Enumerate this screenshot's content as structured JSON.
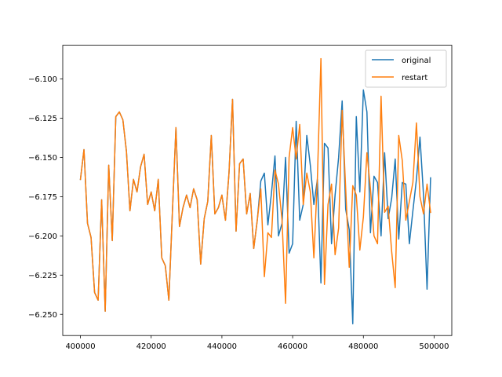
{
  "chart_data": {
    "type": "line",
    "title": "",
    "xlabel": "",
    "ylabel": "",
    "xlim": [
      395000,
      505000
    ],
    "ylim": [
      -6.2635,
      -6.0785
    ],
    "xticks": [
      400000,
      420000,
      440000,
      460000,
      480000,
      500000
    ],
    "xtick_labels": [
      "400000",
      "420000",
      "440000",
      "460000",
      "480000",
      "500000"
    ],
    "yticks": [
      -6.25,
      -6.225,
      -6.2,
      -6.175,
      -6.15,
      -6.125,
      -6.1
    ],
    "ytick_labels": [
      "−6.250",
      "−6.225",
      "−6.200",
      "−6.175",
      "−6.150",
      "−6.125",
      "−6.100"
    ],
    "grid": false,
    "legend_position": "upper right",
    "series": [
      {
        "name": "original",
        "color": "#1f77b4",
        "x": [
          400000,
          401000,
          402000,
          403000,
          404000,
          405000,
          406000,
          407000,
          408000,
          409000,
          410000,
          411000,
          412000,
          413000,
          414000,
          415000,
          416000,
          417000,
          418000,
          419000,
          420000,
          421000,
          422000,
          423000,
          424000,
          425000,
          426000,
          427000,
          428000,
          429000,
          430000,
          431000,
          432000,
          433000,
          434000,
          435000,
          436000,
          437000,
          438000,
          439000,
          440000,
          441000,
          442000,
          443000,
          444000,
          445000,
          446000,
          447000,
          448000,
          449000,
          450000,
          451000,
          452000,
          453000,
          454000,
          455000,
          456000,
          457000,
          458000,
          459000,
          460000,
          461000,
          462000,
          463000,
          464000,
          465000,
          466000,
          467000,
          468000,
          469000,
          470000,
          471000,
          472000,
          473000,
          474000,
          475000,
          476000,
          477000,
          478000,
          479000,
          480000,
          481000,
          482000,
          483000,
          484000,
          485000,
          486000,
          487000,
          488000,
          489000,
          490000,
          491000,
          492000,
          493000,
          494000,
          495000,
          496000,
          497000,
          498000,
          499000
        ],
        "y": [
          -6.164,
          -6.145,
          -6.192,
          -6.201,
          -6.236,
          -6.241,
          -6.177,
          -6.248,
          -6.155,
          -6.203,
          -6.124,
          -6.121,
          -6.126,
          -6.146,
          -6.184,
          -6.164,
          -6.172,
          -6.156,
          -6.148,
          -6.18,
          -6.172,
          -6.184,
          -6.164,
          -6.214,
          -6.219,
          -6.241,
          -6.185,
          -6.131,
          -6.194,
          -6.182,
          -6.174,
          -6.182,
          -6.17,
          -6.177,
          -6.218,
          -6.189,
          -6.178,
          -6.136,
          -6.186,
          -6.182,
          -6.174,
          -6.19,
          -6.16,
          -6.113,
          -6.197,
          -6.154,
          -6.151,
          -6.186,
          -6.173,
          -6.208,
          -6.19,
          -6.165,
          -6.16,
          -6.193,
          -6.173,
          -6.149,
          -6.2,
          -6.192,
          -6.15,
          -6.211,
          -6.205,
          -6.127,
          -6.19,
          -6.18,
          -6.136,
          -6.155,
          -6.18,
          -6.164,
          -6.23,
          -6.141,
          -6.144,
          -6.205,
          -6.174,
          -6.15,
          -6.114,
          -6.183,
          -6.196,
          -6.256,
          -6.124,
          -6.172,
          -6.107,
          -6.121,
          -6.198,
          -6.162,
          -6.166,
          -6.2,
          -6.147,
          -6.189,
          -6.176,
          -6.151,
          -6.202,
          -6.166,
          -6.167,
          -6.205,
          -6.184,
          -6.164,
          -6.137,
          -6.174,
          -6.234,
          -6.163
        ]
      },
      {
        "name": "restart",
        "color": "#ff7f0e",
        "x": [
          400000,
          401000,
          402000,
          403000,
          404000,
          405000,
          406000,
          407000,
          408000,
          409000,
          410000,
          411000,
          412000,
          413000,
          414000,
          415000,
          416000,
          417000,
          418000,
          419000,
          420000,
          421000,
          422000,
          423000,
          424000,
          425000,
          426000,
          427000,
          428000,
          429000,
          430000,
          431000,
          432000,
          433000,
          434000,
          435000,
          436000,
          437000,
          438000,
          439000,
          440000,
          441000,
          442000,
          443000,
          444000,
          445000,
          446000,
          447000,
          448000,
          449000,
          450000,
          451000,
          452000,
          453000,
          454000,
          455000,
          456000,
          457000,
          458000,
          459000,
          460000,
          461000,
          462000,
          463000,
          464000,
          465000,
          466000,
          467000,
          468000,
          469000,
          470000,
          471000,
          472000,
          473000,
          474000,
          475000,
          476000,
          477000,
          478000,
          479000,
          480000,
          481000,
          482000,
          483000,
          484000,
          485000,
          486000,
          487000,
          488000,
          489000,
          490000,
          491000,
          492000,
          493000,
          494000,
          495000,
          496000,
          497000,
          498000,
          499000
        ],
        "y": [
          -6.164,
          -6.145,
          -6.192,
          -6.201,
          -6.236,
          -6.241,
          -6.177,
          -6.248,
          -6.155,
          -6.203,
          -6.124,
          -6.121,
          -6.126,
          -6.146,
          -6.184,
          -6.164,
          -6.172,
          -6.156,
          -6.148,
          -6.18,
          -6.172,
          -6.184,
          -6.164,
          -6.214,
          -6.219,
          -6.241,
          -6.185,
          -6.131,
          -6.194,
          -6.182,
          -6.174,
          -6.182,
          -6.17,
          -6.177,
          -6.218,
          -6.189,
          -6.178,
          -6.136,
          -6.186,
          -6.182,
          -6.174,
          -6.19,
          -6.16,
          -6.113,
          -6.197,
          -6.154,
          -6.151,
          -6.186,
          -6.173,
          -6.208,
          -6.19,
          -6.17,
          -6.226,
          -6.198,
          -6.201,
          -6.158,
          -6.167,
          -6.19,
          -6.243,
          -6.15,
          -6.131,
          -6.151,
          -6.129,
          -6.18,
          -6.16,
          -6.172,
          -6.214,
          -6.163,
          -6.087,
          -6.231,
          -6.18,
          -6.167,
          -6.212,
          -6.195,
          -6.12,
          -6.17,
          -6.22,
          -6.168,
          -6.174,
          -6.209,
          -6.188,
          -6.147,
          -6.17,
          -6.2,
          -6.205,
          -6.111,
          -6.185,
          -6.181,
          -6.21,
          -6.233,
          -6.136,
          -6.152,
          -6.19,
          -6.178,
          -6.166,
          -6.128,
          -6.175,
          -6.186,
          -6.167,
          -6.185
        ]
      }
    ]
  }
}
